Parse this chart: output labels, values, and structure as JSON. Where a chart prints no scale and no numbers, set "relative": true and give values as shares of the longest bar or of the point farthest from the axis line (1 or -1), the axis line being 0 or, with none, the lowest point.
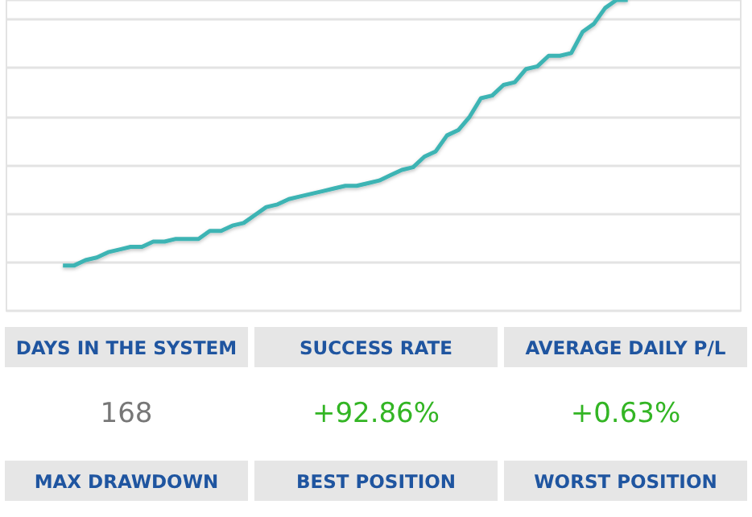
{
  "chart_data": [
    {
      "type": "line",
      "relative": true,
      "grid": "y",
      "categories": [
        null,
        null,
        null,
        null,
        null,
        null,
        null,
        null,
        null,
        null,
        null,
        null,
        null,
        null,
        null,
        null,
        null,
        null,
        null,
        null,
        null,
        null,
        null,
        null,
        null,
        null,
        null,
        null,
        null,
        null,
        null,
        null,
        null,
        null,
        null,
        null,
        null,
        null,
        null,
        null,
        null,
        null,
        null,
        null,
        null,
        null,
        null,
        null,
        null,
        null,
        null,
        null,
        null,
        null,
        null,
        null,
        null,
        null,
        null,
        null,
        null,
        null,
        null,
        null,
        null,
        null
      ],
      "series": [
        {
          "color": "#3cb4b4",
          "values": [
            null,
            null,
            null,
            null,
            null,
            0,
            0,
            0.02,
            0.03,
            0.05,
            0.06,
            0.07,
            0.07,
            0.09,
            0.09,
            0.1,
            0.1,
            0.1,
            0.13,
            0.13,
            0.15,
            0.16,
            0.19,
            0.22,
            0.23,
            0.25,
            0.26,
            0.27,
            0.28,
            0.29,
            0.3,
            0.3,
            0.31,
            0.32,
            0.34,
            0.36,
            0.37,
            0.41,
            0.43,
            0.49,
            0.51,
            0.56,
            0.63,
            0.64,
            0.68,
            0.69,
            0.74,
            0.75,
            0.79,
            0.79,
            0.8,
            0.88,
            0.91,
            0.97,
            1,
            1,
            null,
            null,
            null,
            null,
            null,
            null,
            null,
            null,
            null,
            null
          ]
        }
      ]
    },
    {
      "type": "other",
      "annotations": [
        "DAYS IN THE SYSTEM",
        "SUCCESS RATE",
        "AVERAGE DAILY P/L",
        "168",
        "+92.86%",
        "+0.63%",
        "MAX DRAWDOWN",
        "BEST POSITION",
        "WORST POSITION"
      ]
    }
  ]
}
